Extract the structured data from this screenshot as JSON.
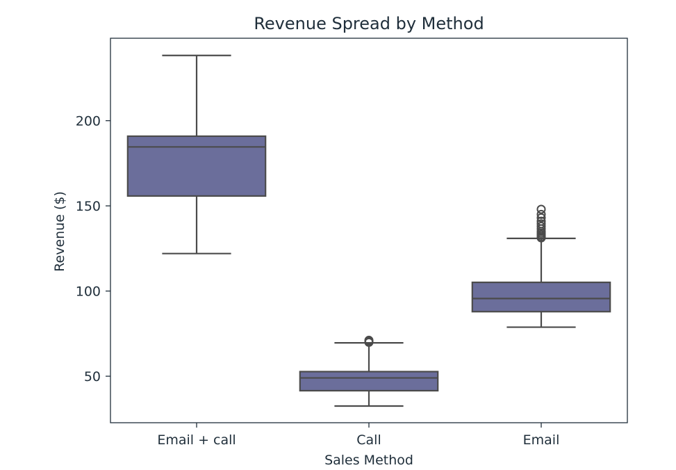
{
  "chart_data": {
    "type": "box",
    "title": "Revenue Spread by Method",
    "xlabel": "Sales Method",
    "ylabel": "Revenue ($)",
    "categories": [
      "Email + call",
      "Call",
      "Email"
    ],
    "ylim": [
      22.7,
      248.4
    ],
    "yticks": [
      50,
      100,
      150,
      200
    ],
    "grid": false,
    "colors": {
      "box_fill": "#6b6e9b",
      "line": "#4b4b4b",
      "axis": "#1f2e3a",
      "text": "#1f2e3a"
    },
    "boxes": [
      {
        "category": "Email + call",
        "whisker_low": 122,
        "q1": 155.8,
        "median": 184.6,
        "q3": 190.9,
        "whisker_high": 238.3,
        "outliers": []
      },
      {
        "category": "Call",
        "whisker_low": 32.5,
        "q1": 41.5,
        "median": 49.0,
        "q3": 52.7,
        "whisker_high": 69.6,
        "outliers": [
          69.9,
          70.6,
          71.1
        ]
      },
      {
        "category": "Email",
        "whisker_low": 78.8,
        "q1": 87.9,
        "median": 95.6,
        "q3": 105.1,
        "whisker_high": 130.9,
        "outliers": [
          131.2,
          132.0,
          133.0,
          134.0,
          135.0,
          136.5,
          138.0,
          139.5,
          141.0,
          143.0,
          145.0,
          148.0
        ]
      }
    ]
  }
}
